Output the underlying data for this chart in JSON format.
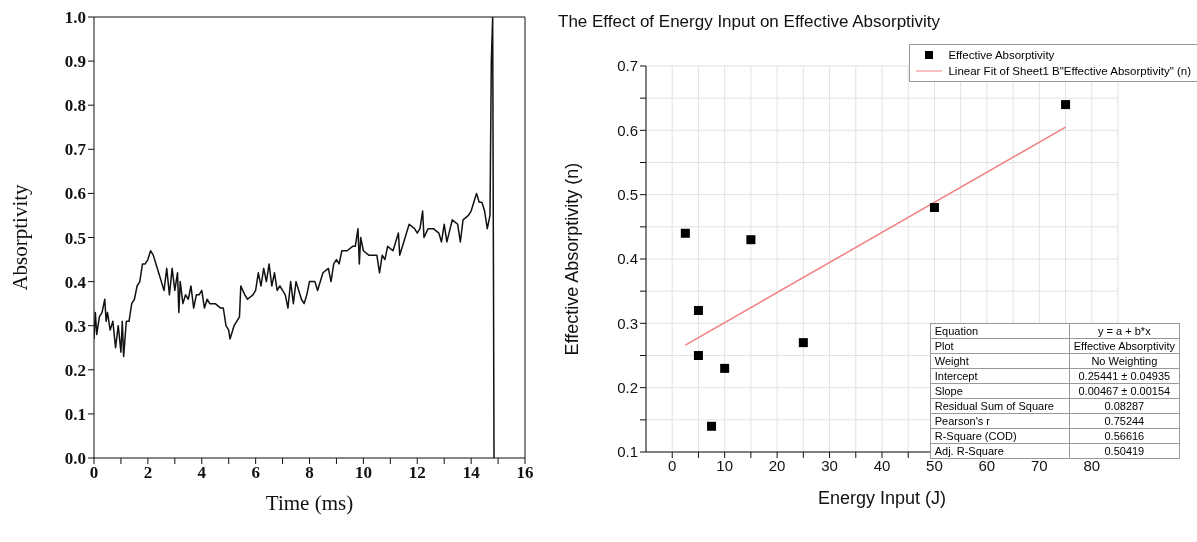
{
  "chart_data": [
    {
      "type": "line",
      "xlabel": "Time (ms)",
      "ylabel": "Absorptivity",
      "color": "#111111",
      "x": [
        0,
        0.05,
        0.1,
        0.2,
        0.3,
        0.4,
        0.45,
        0.5,
        0.6,
        0.7,
        0.8,
        0.9,
        1.0,
        1.05,
        1.1,
        1.2,
        1.3,
        1.4,
        1.5,
        1.6,
        1.7,
        1.8,
        1.9,
        2.0,
        2.1,
        2.2,
        2.3,
        2.4,
        2.5,
        2.6,
        2.7,
        2.8,
        2.9,
        3.0,
        3.1,
        3.15,
        3.2,
        3.3,
        3.4,
        3.5,
        3.6,
        3.7,
        3.8,
        3.9,
        4.0,
        4.1,
        4.2,
        4.3,
        4.5,
        4.7,
        4.8,
        4.9,
        5.0,
        5.05,
        5.2,
        5.4,
        5.45,
        5.6,
        5.7,
        5.9,
        6.0,
        6.1,
        6.2,
        6.3,
        6.4,
        6.5,
        6.6,
        6.7,
        6.8,
        6.9,
        7.0,
        7.1,
        7.2,
        7.3,
        7.4,
        7.5,
        7.6,
        7.7,
        7.8,
        7.9,
        8.0,
        8.2,
        8.3,
        8.5,
        8.7,
        8.8,
        8.9,
        9.0,
        9.1,
        9.2,
        9.4,
        9.6,
        9.7,
        9.8,
        9.85,
        9.9,
        10.0,
        10.2,
        10.5,
        10.6,
        10.7,
        10.8,
        10.9,
        11.1,
        11.3,
        11.35,
        11.5,
        11.6,
        11.7,
        11.9,
        12.0,
        12.1,
        12.2,
        12.25,
        12.4,
        12.6,
        12.8,
        12.9,
        13.0,
        13.1,
        13.3,
        13.5,
        13.6,
        13.7,
        13.9,
        14.0,
        14.1,
        14.2,
        14.3,
        14.4,
        14.5,
        14.6,
        14.7,
        14.75,
        14.8,
        14.85
      ],
      "values": [
        0.27,
        0.33,
        0.28,
        0.32,
        0.33,
        0.36,
        0.31,
        0.33,
        0.29,
        0.31,
        0.25,
        0.3,
        0.24,
        0.31,
        0.23,
        0.31,
        0.31,
        0.35,
        0.36,
        0.39,
        0.4,
        0.44,
        0.44,
        0.45,
        0.47,
        0.46,
        0.44,
        0.42,
        0.4,
        0.38,
        0.43,
        0.37,
        0.43,
        0.38,
        0.42,
        0.33,
        0.4,
        0.35,
        0.37,
        0.36,
        0.39,
        0.34,
        0.37,
        0.37,
        0.38,
        0.34,
        0.36,
        0.35,
        0.35,
        0.34,
        0.34,
        0.3,
        0.29,
        0.27,
        0.3,
        0.32,
        0.39,
        0.37,
        0.36,
        0.37,
        0.38,
        0.42,
        0.39,
        0.43,
        0.4,
        0.44,
        0.39,
        0.42,
        0.38,
        0.39,
        0.38,
        0.37,
        0.34,
        0.4,
        0.35,
        0.4,
        0.38,
        0.36,
        0.35,
        0.37,
        0.4,
        0.4,
        0.38,
        0.42,
        0.43,
        0.4,
        0.44,
        0.45,
        0.44,
        0.47,
        0.47,
        0.48,
        0.48,
        0.52,
        0.44,
        0.5,
        0.47,
        0.46,
        0.46,
        0.42,
        0.46,
        0.45,
        0.48,
        0.47,
        0.51,
        0.46,
        0.49,
        0.51,
        0.53,
        0.52,
        0.51,
        0.52,
        0.56,
        0.5,
        0.52,
        0.52,
        0.51,
        0.49,
        0.53,
        0.49,
        0.54,
        0.53,
        0.49,
        0.54,
        0.55,
        0.56,
        0.58,
        0.6,
        0.58,
        0.58,
        0.56,
        0.52,
        0.55,
        0.9,
        1.0,
        0.0
      ],
      "xlim": [
        0,
        16
      ],
      "xticks": [
        0,
        {
          "value": 1,
          "label": null
        },
        2,
        {
          "value": 3,
          "label": null
        },
        4,
        {
          "value": 5,
          "label": null
        },
        6,
        {
          "value": 7,
          "label": null
        },
        8,
        {
          "value": 9,
          "label": null
        },
        10,
        {
          "value": 11,
          "label": null
        },
        12,
        {
          "value": 13,
          "label": null
        },
        14,
        {
          "value": 15,
          "label": null
        },
        16
      ],
      "ylim": [
        0,
        1
      ],
      "yticks": [
        {
          "value": 0,
          "label": "0.0"
        },
        0.1,
        0.2,
        0.3,
        0.4,
        0.5,
        0.6,
        0.7,
        0.8,
        0.9,
        {
          "value": 1,
          "label": "1.0"
        }
      ]
    },
    {
      "type": "scatter",
      "title": "The Effect of Energy Input on Effective Absorptivity",
      "xlabel": "Energy Input (J)",
      "ylabel": "Effective Absorptivity (n)",
      "grid": true,
      "legend": "top right",
      "series": [
        {
          "name": "Effective Absorptivity",
          "marker": "square",
          "color": "#000000",
          "x": [
            2.5,
            5,
            5,
            7.5,
            10,
            15,
            25,
            50,
            75
          ],
          "values": [
            0.44,
            0.32,
            0.25,
            0.14,
            0.23,
            0.43,
            0.27,
            0.48,
            0.64
          ]
        },
        {
          "name": "Linear Fit of Sheet1 B\"Effective Absorptivity\" (n)",
          "type": "line",
          "color": "#f08080",
          "x": [
            2.5,
            75
          ],
          "values": [
            0.266,
            0.605
          ]
        }
      ],
      "xlim": [
        -5,
        85
      ],
      "xticks": [
        0,
        {
          "value": 5,
          "label": null
        },
        10,
        {
          "value": 15,
          "label": null
        },
        20,
        {
          "value": 25,
          "label": null
        },
        30,
        {
          "value": 35,
          "label": null
        },
        40,
        {
          "value": 45,
          "label": null
        },
        50,
        {
          "value": 55,
          "label": null
        },
        60,
        {
          "value": 65,
          "label": null
        },
        70,
        {
          "value": 75,
          "label": null
        },
        80
      ],
      "ylim": [
        0.1,
        0.7
      ],
      "yticks": [
        0.1,
        {
          "value": 0.15,
          "label": null
        },
        0.2,
        {
          "value": 0.25,
          "label": null
        },
        0.3,
        {
          "value": 0.35,
          "label": null
        },
        0.4,
        {
          "value": 0.45,
          "label": null
        },
        0.5,
        {
          "value": 0.55,
          "label": null
        },
        0.6,
        {
          "value": 0.65,
          "label": null
        },
        0.7
      ],
      "annotations": [
        "Equation",
        "y = a + b*x",
        "Plot",
        "Effective Absorptivity",
        "Weight",
        "No Weighting",
        "Intercept",
        "0.25441 ± 0.04935",
        "Slope",
        "0.00467 ± 0.00154",
        "Residual Sum of Square",
        "0.08287",
        "Pearson's r",
        "0.75244",
        "R-Square (COD)",
        "0.56616",
        "Adj. R-Square",
        "0.50419"
      ]
    }
  ]
}
